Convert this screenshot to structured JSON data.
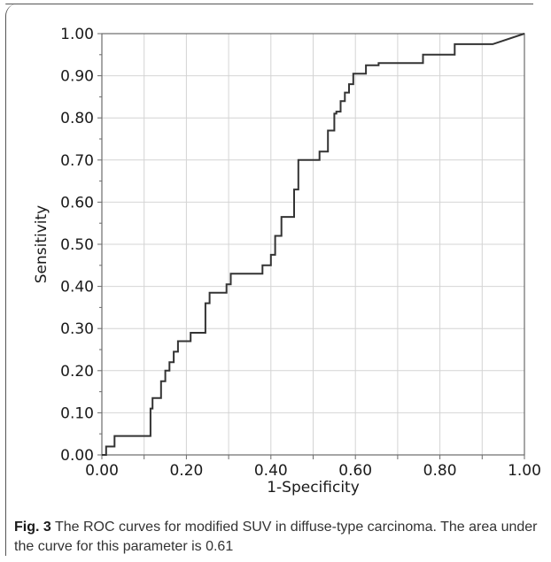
{
  "figure": {
    "caption_label": "Fig. 3",
    "caption_text": " The ROC curves for modified SUV in diffuse-type carcinoma. The area under the curve for this parameter is 0.61"
  },
  "chart_data": {
    "type": "line",
    "title": "",
    "xlabel": "1-Specificity",
    "ylabel": "Sensitivity",
    "xlim": [
      0,
      1
    ],
    "ylim": [
      0,
      1
    ],
    "grid": true,
    "x_ticks": [
      "0.00",
      "0.20",
      "0.40",
      "0.60",
      "0.80",
      "1.00"
    ],
    "y_ticks": [
      "0.00",
      "0.10",
      "0.20",
      "0.30",
      "0.40",
      "0.50",
      "0.60",
      "0.70",
      "0.80",
      "0.90",
      "1.00"
    ],
    "series": [
      {
        "name": "",
        "color": "#333333",
        "x": [
          0.0,
          0.01,
          0.01,
          0.03,
          0.03,
          0.115,
          0.115,
          0.12,
          0.12,
          0.14,
          0.14,
          0.15,
          0.15,
          0.16,
          0.16,
          0.17,
          0.17,
          0.18,
          0.18,
          0.21,
          0.21,
          0.245,
          0.245,
          0.255,
          0.255,
          0.26,
          0.26,
          0.295,
          0.295,
          0.305,
          0.305,
          0.38,
          0.38,
          0.4,
          0.4,
          0.41,
          0.41,
          0.425,
          0.425,
          0.455,
          0.455,
          0.465,
          0.465,
          0.47,
          0.47,
          0.515,
          0.515,
          0.535,
          0.535,
          0.55,
          0.55,
          0.555,
          0.555,
          0.565,
          0.565,
          0.575,
          0.575,
          0.585,
          0.585,
          0.595,
          0.595,
          0.625,
          0.625,
          0.655,
          0.655,
          0.76,
          0.76,
          0.835,
          0.835,
          0.925,
          1.0
        ],
        "y": [
          0.0,
          0.0,
          0.02,
          0.02,
          0.045,
          0.045,
          0.11,
          0.11,
          0.135,
          0.135,
          0.175,
          0.175,
          0.2,
          0.2,
          0.22,
          0.22,
          0.245,
          0.245,
          0.27,
          0.27,
          0.29,
          0.29,
          0.36,
          0.36,
          0.385,
          0.385,
          0.385,
          0.385,
          0.405,
          0.405,
          0.43,
          0.43,
          0.45,
          0.45,
          0.475,
          0.475,
          0.52,
          0.52,
          0.565,
          0.565,
          0.63,
          0.63,
          0.7,
          0.7,
          0.7,
          0.7,
          0.72,
          0.72,
          0.77,
          0.77,
          0.81,
          0.81,
          0.815,
          0.815,
          0.84,
          0.84,
          0.86,
          0.86,
          0.88,
          0.88,
          0.905,
          0.905,
          0.925,
          0.925,
          0.93,
          0.93,
          0.95,
          0.95,
          0.975,
          0.975,
          1.0
        ]
      }
    ]
  }
}
